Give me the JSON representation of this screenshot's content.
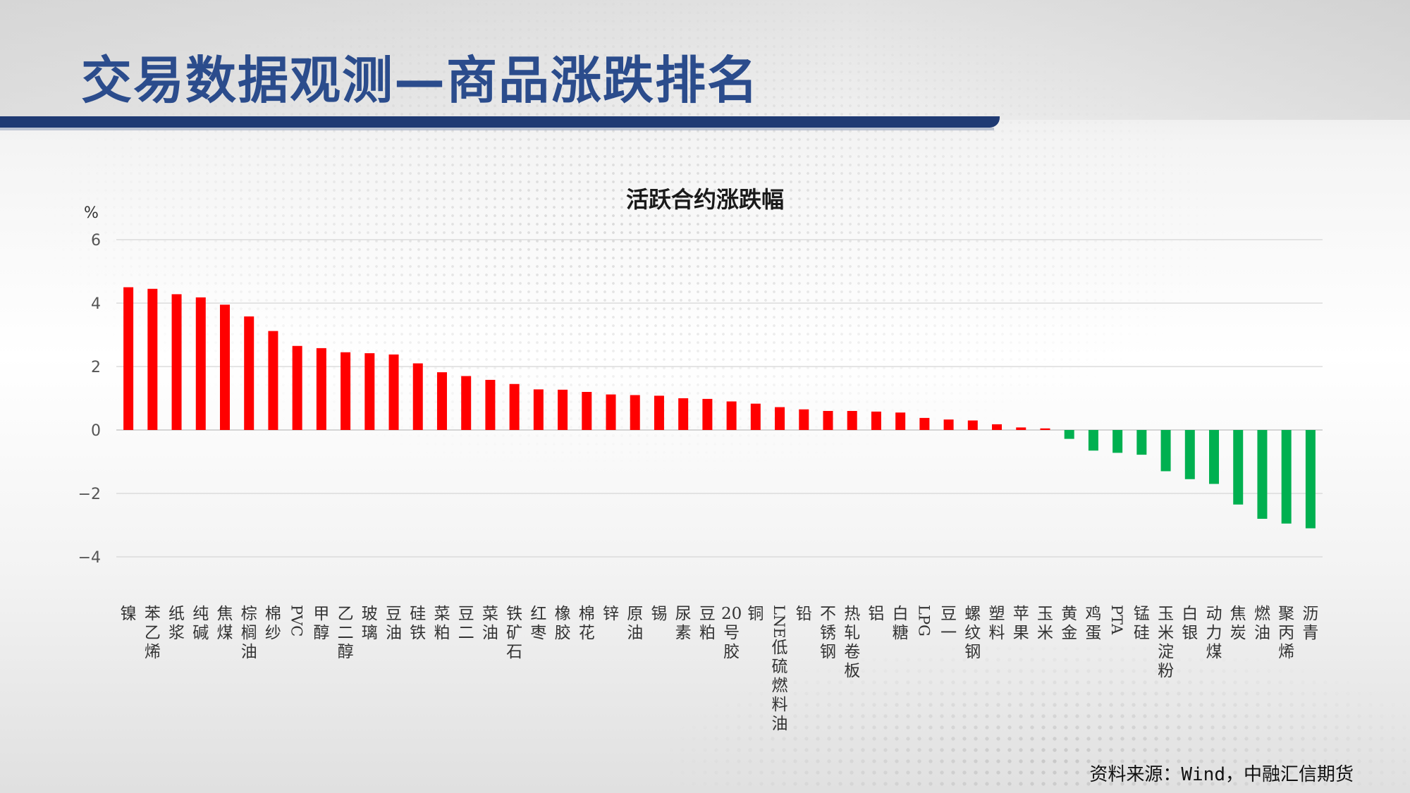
{
  "header": {
    "title": "交易数据观测—商品涨跌排名"
  },
  "chart_data": {
    "type": "bar",
    "title": "活跃合约涨跌幅",
    "ylabel": "%",
    "ylim": [
      -4,
      6
    ],
    "yticks": [
      6,
      4,
      2,
      0,
      -2,
      -4
    ],
    "grid": true,
    "colors": {
      "positive": "#ff0000",
      "negative": "#00b050"
    },
    "categories": [
      "镍",
      "苯乙烯",
      "纸浆",
      "纯碱",
      "焦煤",
      "棕榈油",
      "棉纱",
      "PVC",
      "甲醇",
      "乙二醇",
      "玻璃",
      "豆油",
      "硅铁",
      "菜粕",
      "豆二",
      "菜油",
      "铁矿石",
      "红枣",
      "橡胶",
      "棉花",
      "锌",
      "原油",
      "锡",
      "尿素",
      "豆粕",
      "20号胶",
      "铜",
      "LNE低硫燃料油",
      "铅",
      "不锈钢",
      "热轧卷板",
      "铝",
      "白糖",
      "LPG",
      "豆一",
      "螺纹钢",
      "塑料",
      "苹果",
      "玉米",
      "黄金",
      "鸡蛋",
      "PTA",
      "锰硅",
      "玉米淀粉",
      "白银",
      "动力煤",
      "焦炭",
      "燃油",
      "聚丙烯",
      "沥青"
    ],
    "values": [
      4.5,
      4.45,
      4.28,
      4.18,
      3.95,
      3.58,
      3.12,
      2.65,
      2.58,
      2.45,
      2.42,
      2.38,
      2.1,
      1.82,
      1.7,
      1.58,
      1.45,
      1.28,
      1.27,
      1.2,
      1.12,
      1.1,
      1.08,
      1.0,
      0.98,
      0.9,
      0.83,
      0.72,
      0.65,
      0.6,
      0.6,
      0.58,
      0.55,
      0.38,
      0.33,
      0.3,
      0.18,
      0.08,
      0.05,
      -0.28,
      -0.65,
      -0.72,
      -0.78,
      -1.3,
      -1.55,
      -1.7,
      -2.35,
      -2.8,
      -2.95,
      -3.1
    ]
  },
  "footer": {
    "source": "资料来源：Wind，中融汇信期货"
  }
}
